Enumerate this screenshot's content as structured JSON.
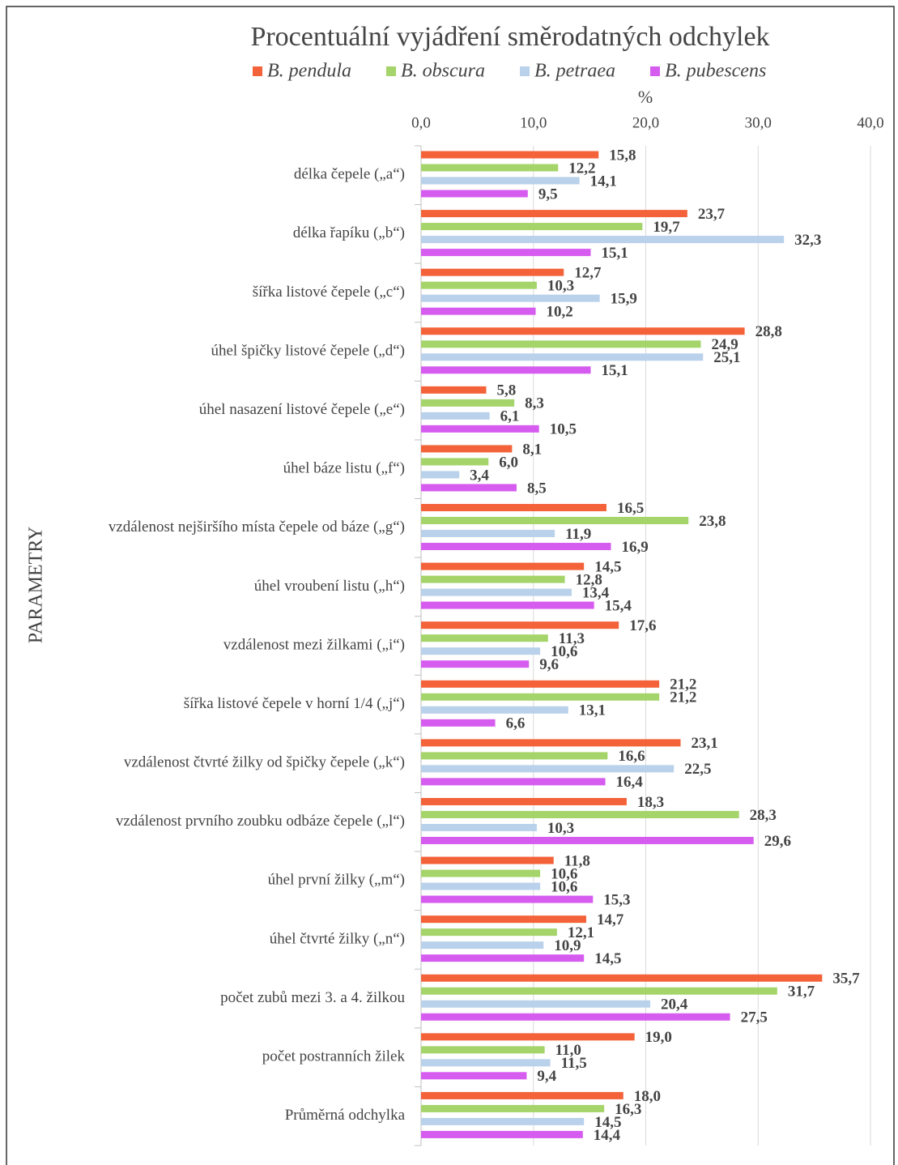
{
  "chart_data": {
    "type": "hbar",
    "title": "Procentuální vyjádření směrodatných odchylek",
    "xlabel": "%",
    "ylabel": "PARAMETRY",
    "categories": [
      "délka čepele („a“)",
      "délka řapíku („b“)",
      "šířka listové čepele („c“)",
      "úhel špičky listové čepele („d“)",
      "úhel nasazení listové čepele („e“)",
      "úhel báze listu („f“)",
      "vzdálenost nejširšího místa čepele od báze („g“)",
      "úhel vroubení listu („h“)",
      "vzdálenost mezi žilkami („i“)",
      "šířka listové čepele v horní 1/4 („j“)",
      "vzdálenost čtvrté žilky od špičky čepele („k“)",
      "vzdálenost prvního zoubku odbáze čepele („l“)",
      "úhel první žilky („m“)",
      "úhel čtvrté žilky („n“)",
      "počet zubů mezi 3. a 4. žilkou",
      "počet postranních žilek",
      "Průměrná odchylka"
    ],
    "series": [
      {
        "name": "B. pendula",
        "color": "#f4623a",
        "values": [
          15.8,
          23.7,
          12.7,
          28.8,
          5.8,
          8.1,
          16.5,
          14.5,
          17.6,
          21.2,
          23.1,
          18.3,
          11.8,
          14.7,
          35.7,
          19.0,
          18.0
        ],
        "value_labels": [
          "15,8",
          "23,7",
          "12,7",
          "28,8",
          "5,8",
          "8,1",
          "16,5",
          "14,5",
          "17,6",
          "21,2",
          "23,1",
          "18,3",
          "11,8",
          "14,7",
          "35,7",
          "19,0",
          "18,0"
        ]
      },
      {
        "name": "B. obscura",
        "color": "#a5d46a",
        "values": [
          12.2,
          19.7,
          10.3,
          24.9,
          8.3,
          6.0,
          23.8,
          12.8,
          11.3,
          21.2,
          16.6,
          28.3,
          10.6,
          12.1,
          31.7,
          11.0,
          16.3
        ],
        "value_labels": [
          "12,2",
          "19,7",
          "10,3",
          "24,9",
          "8,3",
          "6,0",
          "23,8",
          "12,8",
          "11,3",
          "21,2",
          "16,6",
          "28,3",
          "10,6",
          "12,1",
          "31,7",
          "11,0",
          "16,3"
        ]
      },
      {
        "name": "B. petraea",
        "color": "#b9d1ea",
        "values": [
          14.1,
          32.3,
          15.9,
          25.1,
          6.1,
          3.4,
          11.9,
          13.4,
          10.6,
          13.1,
          22.5,
          10.3,
          10.6,
          10.9,
          20.4,
          11.5,
          14.5
        ],
        "value_labels": [
          "14,1",
          "32,3",
          "15,9",
          "25,1",
          "6,1",
          "3,4",
          "11,9",
          "13,4",
          "10,6",
          "13,1",
          "22,5",
          "10,3",
          "10,6",
          "10,9",
          "20,4",
          "11,5",
          "14,5"
        ]
      },
      {
        "name": "B. pubescens",
        "color": "#d65cf0",
        "values": [
          9.5,
          15.1,
          10.2,
          15.1,
          10.5,
          8.5,
          16.9,
          15.4,
          9.6,
          6.6,
          16.4,
          29.6,
          15.3,
          14.5,
          27.5,
          9.4,
          14.4
        ],
        "value_labels": [
          "9,5",
          "15,1",
          "10,2",
          "15,1",
          "10,5",
          "8,5",
          "16,9",
          "15,4",
          "9,6",
          "6,6",
          "16,4",
          "29,6",
          "15,3",
          "14,5",
          "27,5",
          "9,4",
          "14,4"
        ]
      }
    ],
    "xlim": [
      0,
      40
    ],
    "xticks": [
      {
        "value": 0,
        "label": "0,0"
      },
      {
        "value": 10,
        "label": "10,0"
      },
      {
        "value": 20,
        "label": "20,0"
      },
      {
        "value": 30,
        "label": "30,0"
      },
      {
        "value": 40,
        "label": "40,0"
      }
    ],
    "grid": true,
    "legend": "top"
  }
}
